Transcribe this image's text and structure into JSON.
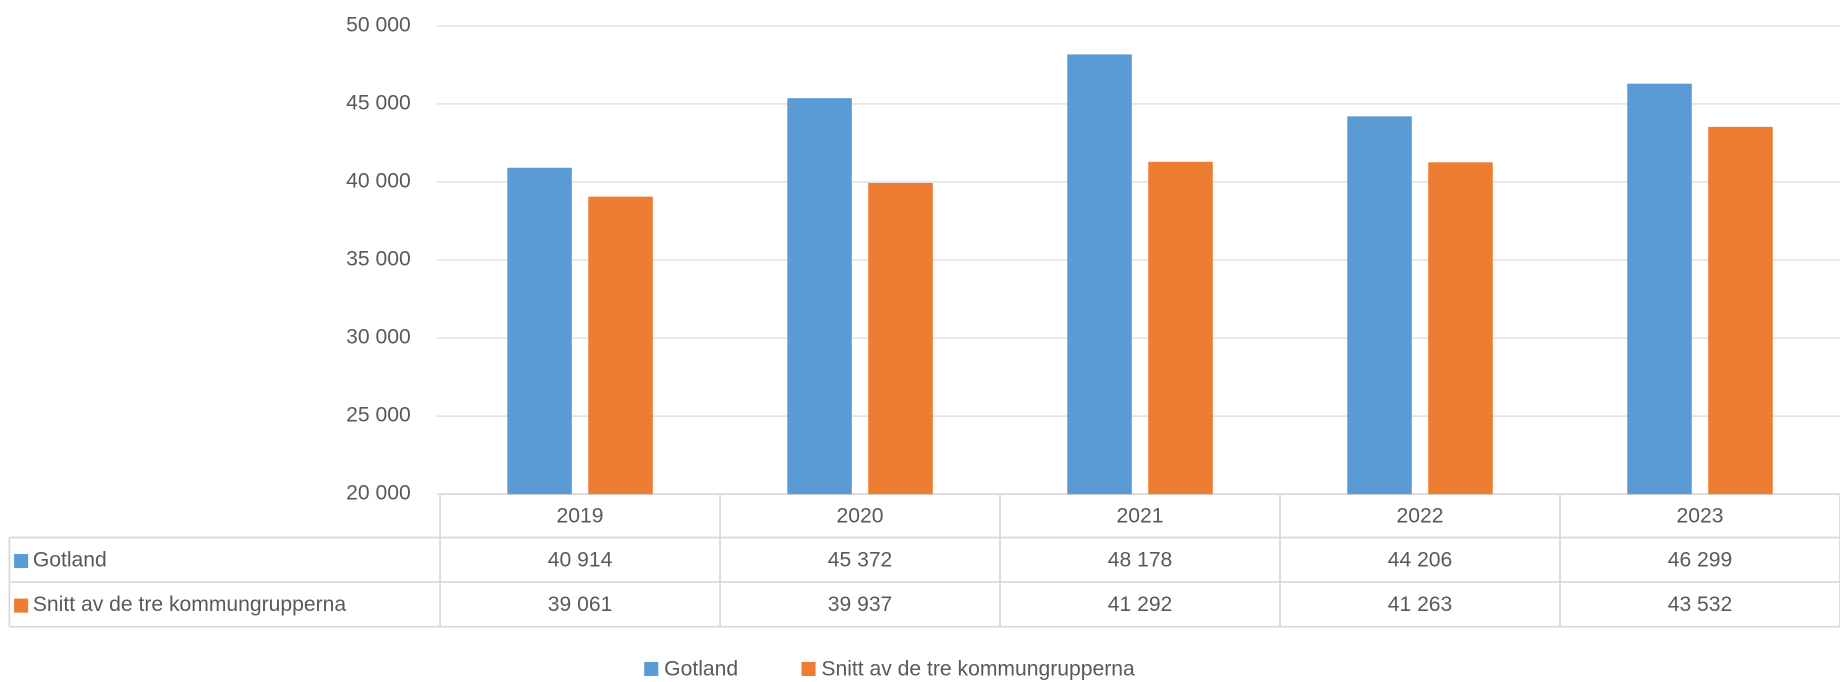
{
  "chart_data": {
    "type": "bar",
    "categories": [
      "2019",
      "2020",
      "2021",
      "2022",
      "2023"
    ],
    "series": [
      {
        "name": "Gotland",
        "color": "#5b9bd5",
        "values": [
          40914,
          45372,
          48178,
          44206,
          46299
        ],
        "value_labels": [
          "40 914",
          "45 372",
          "48 178",
          "44 206",
          "46 299"
        ]
      },
      {
        "name": "Snitt av de tre kommungrupperna",
        "color": "#ed7d31",
        "values": [
          39061,
          39937,
          41292,
          41263,
          43532
        ],
        "value_labels": [
          "39 061",
          "39 937",
          "41 292",
          "41 263",
          "43 532"
        ]
      }
    ],
    "ylim": [
      20000,
      50000
    ],
    "yticks": [
      {
        "value": 20000,
        "label": "20 000"
      },
      {
        "value": 25000,
        "label": "25 000"
      },
      {
        "value": 30000,
        "label": "30 000"
      },
      {
        "value": 35000,
        "label": "35 000"
      },
      {
        "value": 40000,
        "label": "40 000"
      },
      {
        "value": 45000,
        "label": "45 000"
      },
      {
        "value": 50000,
        "label": "50 000"
      }
    ],
    "grid": true,
    "legend": "bottom"
  }
}
